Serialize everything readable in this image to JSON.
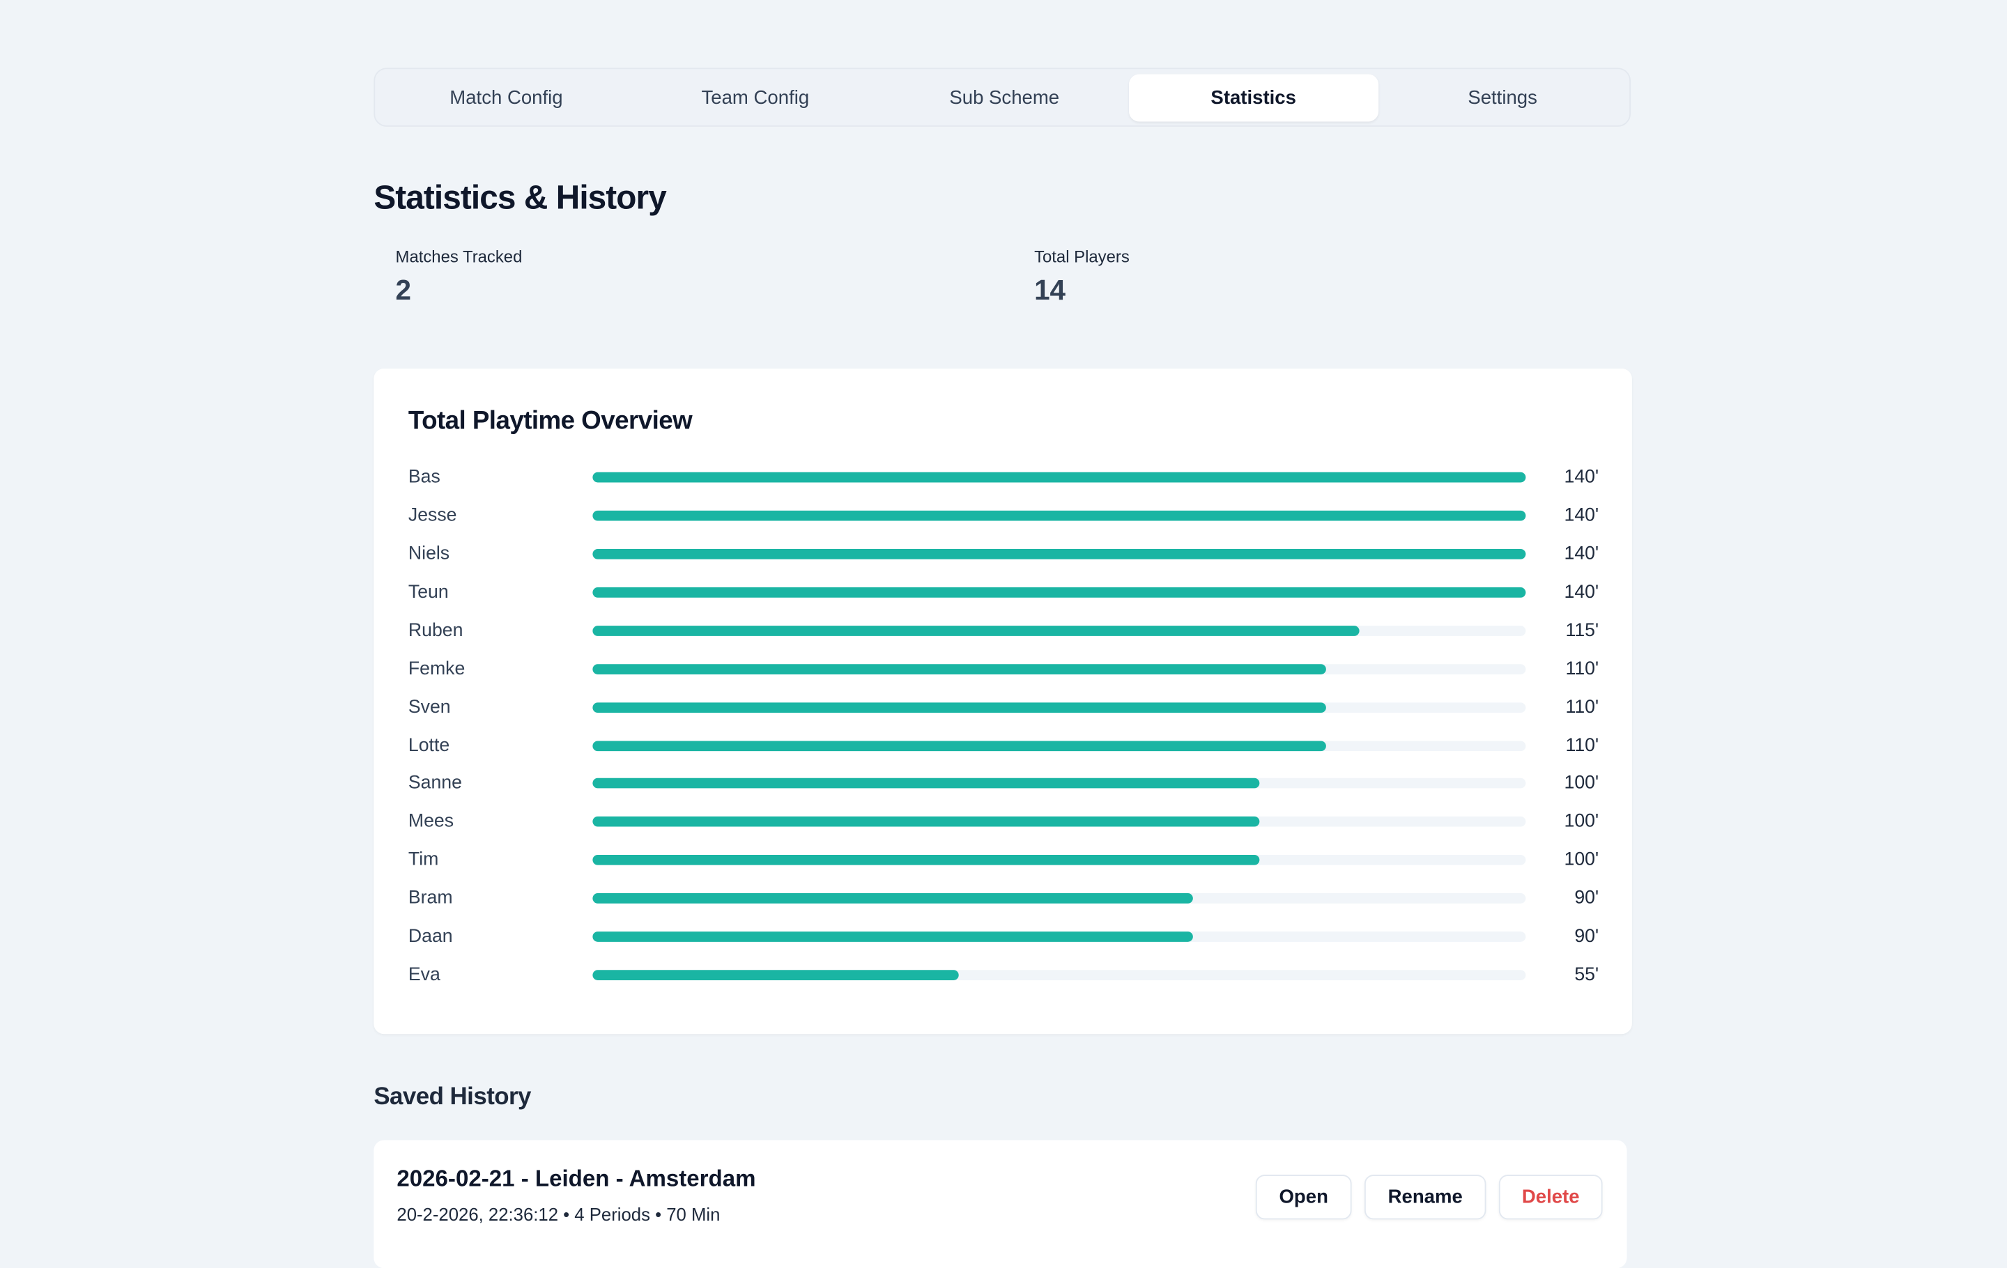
{
  "tabs": [
    {
      "label": "Match Config",
      "active": false
    },
    {
      "label": "Team Config",
      "active": false
    },
    {
      "label": "Sub Scheme",
      "active": false
    },
    {
      "label": "Statistics",
      "active": true
    },
    {
      "label": "Settings",
      "active": false
    }
  ],
  "heading": "Statistics & History",
  "stats": [
    {
      "label": "Matches Tracked",
      "value": 2
    },
    {
      "label": "Total Players",
      "value": 14
    }
  ],
  "chart_data": {
    "type": "bar",
    "orientation": "horizontal",
    "title": "Total Playtime Overview",
    "categories": [
      "Bas",
      "Jesse",
      "Niels",
      "Teun",
      "Ruben",
      "Femke",
      "Sven",
      "Lotte",
      "Sanne",
      "Mees",
      "Tim",
      "Bram",
      "Daan",
      "Eva"
    ],
    "values": [
      140,
      140,
      140,
      140,
      115,
      110,
      110,
      110,
      100,
      100,
      100,
      90,
      90,
      55
    ],
    "value_labels": [
      "140'",
      "140'",
      "140'",
      "140'",
      "115'",
      "110'",
      "110'",
      "110'",
      "100'",
      "100'",
      "100'",
      "90'",
      "90'",
      "55'"
    ],
    "xlim": [
      0,
      140
    ],
    "color": "#1ab5a3"
  },
  "history": {
    "title": "Saved History",
    "items": [
      {
        "title": "2026-02-21 - Leiden - Amsterdam",
        "meta": "20-2-2026, 22:36:12 • 4 Periods • 70 Min",
        "actions": [
          "Open",
          "Rename",
          "Delete"
        ]
      }
    ]
  }
}
